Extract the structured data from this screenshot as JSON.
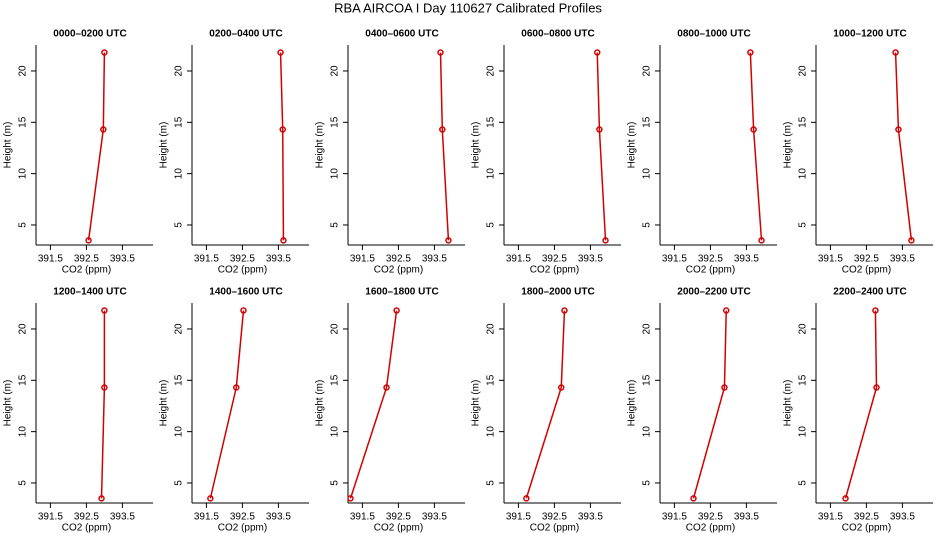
{
  "title": "RBA AIRCOA I  Day 110627  Calibrated Profiles",
  "chart_data": [
    {
      "type": "line",
      "title": "0000–0200 UTC",
      "x_label": "CO2 (ppm)",
      "y_label": "Height (m)",
      "color": "#d40000",
      "x": [
        392.56,
        392.97,
        393.0
      ],
      "values": [
        3.5,
        14.3,
        21.8
      ],
      "xlim": [
        391.1,
        394.35
      ],
      "ylim": [
        3.05,
        22.53
      ],
      "xticks": [
        391.5,
        392.5,
        393.5
      ],
      "yticks": [
        5,
        10,
        15,
        20
      ]
    },
    {
      "type": "line",
      "title": "0200–0400 UTC",
      "x_label": "CO2 (ppm)",
      "y_label": "Height (m)",
      "color": "#d40000",
      "x": [
        393.64,
        393.62,
        393.56
      ],
      "values": [
        3.5,
        14.3,
        21.8
      ],
      "xlim": [
        391.1,
        394.35
      ],
      "ylim": [
        3.05,
        22.53
      ],
      "xticks": [
        391.5,
        392.5,
        393.5
      ],
      "yticks": [
        5,
        10,
        15,
        20
      ]
    },
    {
      "type": "line",
      "title": "0400–0600 UTC",
      "x_label": "CO2 (ppm)",
      "y_label": "Height (m)",
      "color": "#d40000",
      "x": [
        393.89,
        393.72,
        393.67
      ],
      "values": [
        3.5,
        14.3,
        21.8
      ],
      "xlim": [
        391.1,
        394.35
      ],
      "ylim": [
        3.05,
        22.53
      ],
      "xticks": [
        391.5,
        392.5,
        393.5
      ],
      "yticks": [
        5,
        10,
        15,
        20
      ]
    },
    {
      "type": "line",
      "title": "0600–0800 UTC",
      "x_label": "CO2 (ppm)",
      "y_label": "Height (m)",
      "color": "#d40000",
      "x": [
        393.92,
        393.75,
        393.69
      ],
      "values": [
        3.5,
        14.3,
        21.8
      ],
      "xlim": [
        391.1,
        394.35
      ],
      "ylim": [
        3.05,
        22.53
      ],
      "xticks": [
        391.5,
        392.5,
        393.5
      ],
      "yticks": [
        5,
        10,
        15,
        20
      ]
    },
    {
      "type": "line",
      "title": "0800–1000 UTC",
      "x_label": "CO2 (ppm)",
      "y_label": "Height (m)",
      "color": "#d40000",
      "x": [
        393.92,
        393.7,
        393.61
      ],
      "values": [
        3.5,
        14.3,
        21.8
      ],
      "xlim": [
        391.1,
        394.35
      ],
      "ylim": [
        3.05,
        22.53
      ],
      "xticks": [
        391.5,
        392.5,
        393.5
      ],
      "yticks": [
        5,
        10,
        15,
        20
      ]
    },
    {
      "type": "line",
      "title": "1000–1200 UTC",
      "x_label": "CO2 (ppm)",
      "y_label": "Height (m)",
      "color": "#d40000",
      "x": [
        393.75,
        393.39,
        393.31
      ],
      "values": [
        3.5,
        14.3,
        21.8
      ],
      "xlim": [
        391.1,
        394.35
      ],
      "ylim": [
        3.05,
        22.53
      ],
      "xticks": [
        391.5,
        392.5,
        393.5
      ],
      "yticks": [
        5,
        10,
        15,
        20
      ]
    },
    {
      "type": "line",
      "title": "1200–1400 UTC",
      "x_label": "CO2 (ppm)",
      "y_label": "Height (m)",
      "color": "#d40000",
      "x": [
        392.92,
        393.0,
        393.0
      ],
      "values": [
        3.5,
        14.3,
        21.8
      ],
      "xlim": [
        391.1,
        394.35
      ],
      "ylim": [
        3.05,
        22.53
      ],
      "xticks": [
        391.5,
        392.5,
        393.5
      ],
      "yticks": [
        5,
        10,
        15,
        20
      ]
    },
    {
      "type": "line",
      "title": "1400–1600 UTC",
      "x_label": "CO2 (ppm)",
      "y_label": "Height (m)",
      "color": "#d40000",
      "x": [
        391.61,
        392.33,
        392.53
      ],
      "values": [
        3.5,
        14.3,
        21.8
      ],
      "xlim": [
        391.1,
        394.35
      ],
      "ylim": [
        3.05,
        22.53
      ],
      "xticks": [
        391.5,
        392.5,
        393.5
      ],
      "yticks": [
        5,
        10,
        15,
        20
      ]
    },
    {
      "type": "line",
      "title": "1600–1800 UTC",
      "x_label": "CO2 (ppm)",
      "y_label": "Height (m)",
      "color": "#d40000",
      "x": [
        391.17,
        392.17,
        392.45
      ],
      "values": [
        3.5,
        14.3,
        21.8
      ],
      "xlim": [
        391.1,
        394.35
      ],
      "ylim": [
        3.05,
        22.53
      ],
      "xticks": [
        391.5,
        392.5,
        393.5
      ],
      "yticks": [
        5,
        10,
        15,
        20
      ]
    },
    {
      "type": "line",
      "title": "1800–2000 UTC",
      "x_label": "CO2 (ppm)",
      "y_label": "Height (m)",
      "color": "#d40000",
      "x": [
        391.72,
        392.69,
        392.78
      ],
      "values": [
        3.5,
        14.3,
        21.8
      ],
      "xlim": [
        391.1,
        394.35
      ],
      "ylim": [
        3.05,
        22.53
      ],
      "xticks": [
        391.5,
        392.5,
        393.5
      ],
      "yticks": [
        5,
        10,
        15,
        20
      ]
    },
    {
      "type": "line",
      "title": "2000–2200 UTC",
      "x_label": "CO2 (ppm)",
      "y_label": "Height (m)",
      "color": "#d40000",
      "x": [
        392.03,
        392.89,
        392.94
      ],
      "values": [
        3.5,
        14.3,
        21.8
      ],
      "xlim": [
        391.1,
        394.35
      ],
      "ylim": [
        3.05,
        22.53
      ],
      "xticks": [
        391.5,
        392.5,
        393.5
      ],
      "yticks": [
        5,
        10,
        15,
        20
      ]
    },
    {
      "type": "line",
      "title": "2200–2400 UTC",
      "x_label": "CO2 (ppm)",
      "y_label": "Height (m)",
      "color": "#d40000",
      "x": [
        391.92,
        392.78,
        392.75
      ],
      "values": [
        3.5,
        14.3,
        21.8
      ],
      "xlim": [
        391.1,
        394.35
      ],
      "ylim": [
        3.05,
        22.53
      ],
      "xticks": [
        391.5,
        392.5,
        393.5
      ],
      "yticks": [
        5,
        10,
        15,
        20
      ]
    }
  ]
}
